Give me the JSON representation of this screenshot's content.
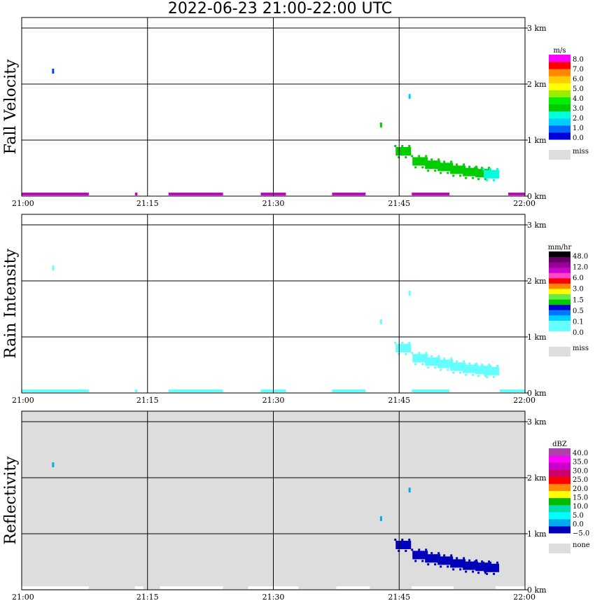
{
  "title": "2022-06-23  21:00-22:00 UTC",
  "chart_data": [
    {
      "type": "heatmap",
      "ylabel": "Fall Velocity",
      "x_ticks": [
        "21:00",
        "21:15",
        "21:30",
        "21:45",
        "22:00"
      ],
      "y_ticks": [
        "0 km",
        "1 km",
        "2 km",
        "3 km"
      ],
      "xlim_minutes": [
        0,
        60
      ],
      "ylim_km": [
        0,
        3.2
      ],
      "unit": "m/s",
      "colorbar": {
        "colors": [
          "#0000dd",
          "#0066ff",
          "#00ccff",
          "#00ffdd",
          "#00cc00",
          "#00ee00",
          "#99ee00",
          "#ffff00",
          "#ffcc00",
          "#ff8800",
          "#ff0000",
          "#ff00ff"
        ],
        "labels": [
          "8.0",
          "7.0",
          "6.0",
          "5.0",
          "4.0",
          "3.0",
          "2.0",
          "1.0",
          "0.0"
        ],
        "miss_label": "miss",
        "miss_color": "#dddddd"
      },
      "echoes": [
        {
          "time_min": 3.7,
          "height_km": 2.23,
          "color": "#0044dd"
        },
        {
          "time_min": 42.8,
          "height_km": 1.27,
          "color": "#00cc00"
        },
        {
          "time_min": 46.2,
          "height_km": 1.78,
          "color": "#00ccff"
        },
        {
          "time_min": 45.5,
          "height_km": 0.8,
          "color": "#00cc00"
        },
        {
          "time_min": 47.5,
          "height_km": 0.62,
          "color": "#00cc00"
        },
        {
          "time_min": 49.0,
          "height_km": 0.56,
          "color": "#00cc00"
        },
        {
          "time_min": 50.5,
          "height_km": 0.52,
          "color": "#00cc00"
        },
        {
          "time_min": 52.0,
          "height_km": 0.47,
          "color": "#00cc00"
        },
        {
          "time_min": 53.5,
          "height_km": 0.43,
          "color": "#00cc00"
        },
        {
          "time_min": 55.0,
          "height_km": 0.41,
          "color": "#00cc00"
        },
        {
          "time_min": 56.0,
          "height_km": 0.39,
          "color": "#00ffdd"
        }
      ],
      "surface_bands": [
        {
          "from_min": 0.0,
          "to_min": 8.0,
          "color": "#cc00cc"
        },
        {
          "from_min": 13.5,
          "to_min": 13.8,
          "color": "#cc00cc"
        },
        {
          "from_min": 17.5,
          "to_min": 24.0,
          "color": "#cc00cc"
        },
        {
          "from_min": 28.5,
          "to_min": 31.5,
          "color": "#cc00cc"
        },
        {
          "from_min": 37.0,
          "to_min": 41.0,
          "color": "#cc00cc"
        },
        {
          "from_min": 46.5,
          "to_min": 51.0,
          "color": "#cc00cc"
        },
        {
          "from_min": 58.0,
          "to_min": 60.0,
          "color": "#cc00cc"
        }
      ]
    },
    {
      "type": "heatmap",
      "ylabel": "Rain Intensity",
      "x_ticks": [
        "21:00",
        "21:15",
        "21:30",
        "21:45",
        "22:00"
      ],
      "y_ticks": [
        "0 km",
        "1 km",
        "2 km",
        "3 km"
      ],
      "xlim_minutes": [
        0,
        60
      ],
      "ylim_km": [
        0,
        3.2
      ],
      "unit": "mm/hr",
      "colorbar": {
        "colors": [
          "#ffffff",
          "#66ffff",
          "#66ffff",
          "#00ccff",
          "#0077ff",
          "#0000cc",
          "#00cc00",
          "#66ee44",
          "#ffff00",
          "#ff8800",
          "#ff0000",
          "#ff44cc",
          "#cc00cc",
          "#990099",
          "#660066",
          "#000000"
        ],
        "labels": [
          "48.0",
          "12.0",
          "6.0",
          "3.0",
          "1.5",
          "0.5",
          "0.1",
          "0.0"
        ],
        "miss_label": "miss",
        "miss_color": "#dddddd"
      },
      "echoes": [
        {
          "time_min": 3.7,
          "height_km": 2.23,
          "color": "#66ffff"
        },
        {
          "time_min": 42.8,
          "height_km": 1.27,
          "color": "#66ffff"
        },
        {
          "time_min": 46.2,
          "height_km": 1.78,
          "color": "#66ffff"
        },
        {
          "time_min": 45.5,
          "height_km": 0.8,
          "color": "#66ffff"
        },
        {
          "time_min": 47.5,
          "height_km": 0.62,
          "color": "#66ffff"
        },
        {
          "time_min": 49.0,
          "height_km": 0.56,
          "color": "#66ffff"
        },
        {
          "time_min": 50.5,
          "height_km": 0.52,
          "color": "#66ffff"
        },
        {
          "time_min": 52.0,
          "height_km": 0.47,
          "color": "#66ffff"
        },
        {
          "time_min": 53.5,
          "height_km": 0.43,
          "color": "#66ffff"
        },
        {
          "time_min": 55.0,
          "height_km": 0.41,
          "color": "#66ffff"
        },
        {
          "time_min": 56.0,
          "height_km": 0.39,
          "color": "#66ffff"
        }
      ],
      "surface_bands": [
        {
          "from_min": 0.0,
          "to_min": 8.0,
          "color": "#66ffff"
        },
        {
          "from_min": 13.5,
          "to_min": 13.8,
          "color": "#66ffff"
        },
        {
          "from_min": 17.5,
          "to_min": 24.0,
          "color": "#66ffff"
        },
        {
          "from_min": 28.5,
          "to_min": 31.5,
          "color": "#66ffff"
        },
        {
          "from_min": 37.0,
          "to_min": 41.0,
          "color": "#66ffff"
        },
        {
          "from_min": 46.5,
          "to_min": 51.0,
          "color": "#66ffff"
        },
        {
          "from_min": 57.0,
          "to_min": 60.0,
          "color": "#66ffff"
        }
      ]
    },
    {
      "type": "heatmap",
      "ylabel": "Reflectivity",
      "x_ticks": [
        "21:00",
        "21:15",
        "21:30",
        "21:45",
        "22:00"
      ],
      "y_ticks": [
        "0 km",
        "1 km",
        "2 km",
        "3 km"
      ],
      "xlim_minutes": [
        0,
        60
      ],
      "ylim_km": [
        0,
        3.2
      ],
      "background": "#dddddd",
      "unit": "dBZ",
      "colorbar": {
        "colors": [
          "#0000bb",
          "#00aaee",
          "#00ffff",
          "#00ddaa",
          "#00bb00",
          "#ffff00",
          "#ff8800",
          "#ff0000",
          "#cc0066",
          "#cc00cc",
          "#ff00ff",
          "#aa44aa"
        ],
        "labels": [
          "40.0",
          "35.0",
          "30.0",
          "25.0",
          "20.0",
          "15.0",
          "10.0",
          "5.0",
          "0.0",
          "−5.0"
        ],
        "miss_label": "none",
        "miss_color": "#dddddd"
      },
      "echoes": [
        {
          "time_min": 3.7,
          "height_km": 2.23,
          "color": "#00aaee"
        },
        {
          "time_min": 42.8,
          "height_km": 1.27,
          "color": "#00aaee"
        },
        {
          "time_min": 46.2,
          "height_km": 1.78,
          "color": "#00aaee"
        },
        {
          "time_min": 45.5,
          "height_km": 0.8,
          "color": "#0000bb"
        },
        {
          "time_min": 47.5,
          "height_km": 0.62,
          "color": "#0000bb"
        },
        {
          "time_min": 49.0,
          "height_km": 0.56,
          "color": "#0000bb"
        },
        {
          "time_min": 50.5,
          "height_km": 0.52,
          "color": "#0000bb"
        },
        {
          "time_min": 52.0,
          "height_km": 0.47,
          "color": "#0000bb"
        },
        {
          "time_min": 53.5,
          "height_km": 0.43,
          "color": "#0000bb"
        },
        {
          "time_min": 55.0,
          "height_km": 0.41,
          "color": "#0000bb"
        },
        {
          "time_min": 56.0,
          "height_km": 0.39,
          "color": "#0000bb"
        }
      ],
      "surface_bands": [
        {
          "from_min": 0.0,
          "to_min": 8.0,
          "color": "#ffffff"
        },
        {
          "from_min": 13.5,
          "to_min": 14.5,
          "color": "#ffffff"
        },
        {
          "from_min": 16.5,
          "to_min": 24.0,
          "color": "#ffffff"
        },
        {
          "from_min": 27.0,
          "to_min": 33.0,
          "color": "#ffffff"
        },
        {
          "from_min": 37.5,
          "to_min": 41.5,
          "color": "#ffffff"
        },
        {
          "from_min": 46.5,
          "to_min": 51.5,
          "color": "#ffffff"
        },
        {
          "from_min": 56.5,
          "to_min": 60.0,
          "color": "#ffffff"
        }
      ]
    }
  ]
}
